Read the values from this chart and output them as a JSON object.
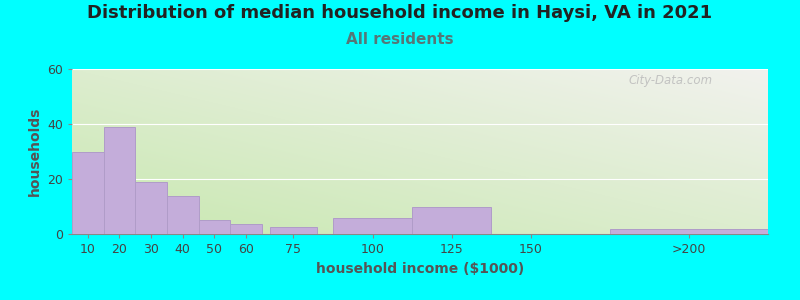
{
  "title": "Distribution of median household income in Haysi, VA in 2021",
  "subtitle": "All residents",
  "xlabel": "household income ($1000)",
  "ylabel": "households",
  "background_outer": "#00FFFF",
  "bar_color": "#C4ADDA",
  "bar_edge_color": "#B09CC8",
  "cat_labels": [
    "10",
    "20",
    "30",
    "40",
    "50",
    "60",
    "75",
    "100",
    "125",
    "150",
    ">200"
  ],
  "values": [
    30,
    39,
    19,
    14,
    5,
    3.5,
    2.5,
    6,
    10,
    0,
    2
  ],
  "bar_lefts": [
    5,
    15,
    25,
    35,
    45,
    55,
    67.5,
    87.5,
    112.5,
    137.5,
    175
  ],
  "bar_widths": [
    10,
    10,
    10,
    10,
    10,
    10,
    15,
    25,
    25,
    25,
    50
  ],
  "xlim": [
    5,
    225
  ],
  "xtick_pos": [
    10,
    20,
    30,
    40,
    50,
    60,
    75,
    100,
    125,
    150,
    200
  ],
  "ylim": [
    0,
    60
  ],
  "yticks": [
    0,
    20,
    40,
    60
  ],
  "title_fontsize": 13,
  "subtitle_fontsize": 11,
  "label_fontsize": 10,
  "tick_fontsize": 9,
  "watermark_text": "City-Data.com",
  "grad_top_left": "#c8e8b0",
  "grad_bottom_right": "#f2f2ee"
}
